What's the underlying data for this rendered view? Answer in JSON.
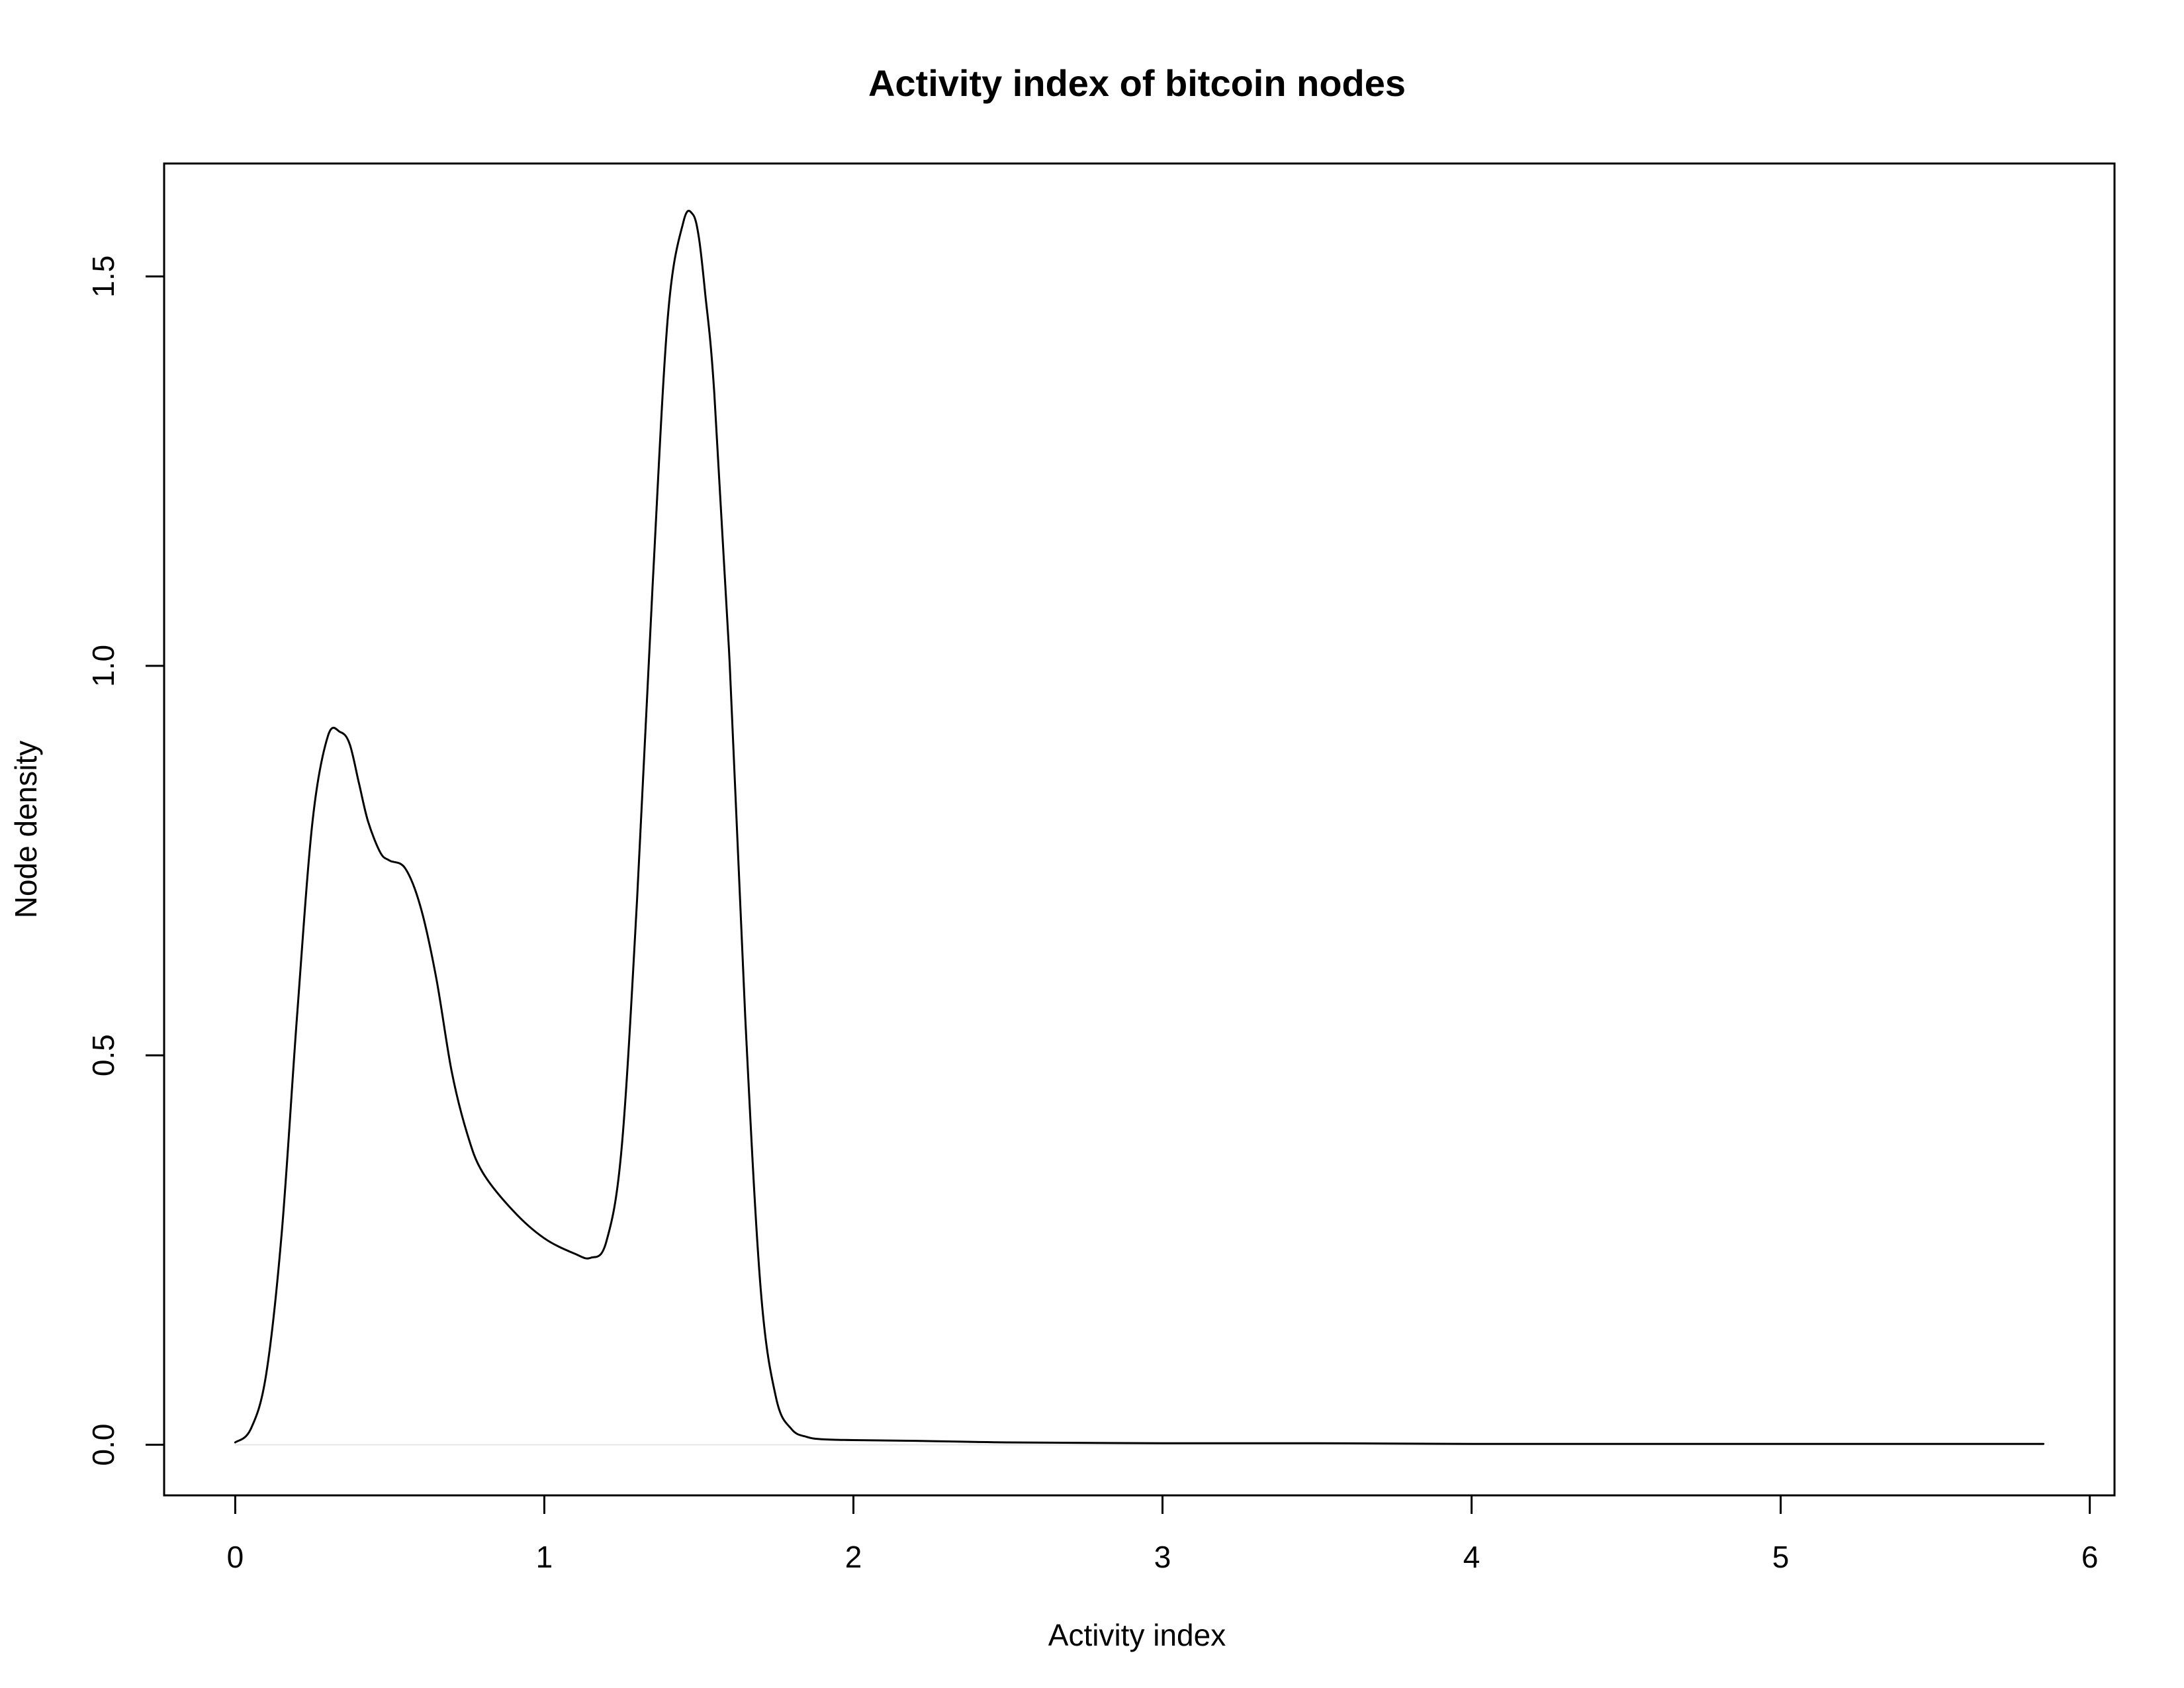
{
  "chart_data": {
    "type": "line",
    "title": "Activity index of bitcoin nodes",
    "xlabel": "Activity index",
    "ylabel": "Node density",
    "xlim": [
      -0.23,
      6.08
    ],
    "ylim": [
      -0.065,
      1.645
    ],
    "xticks": [
      0,
      1,
      2,
      3,
      4,
      5,
      6
    ],
    "xtick_labels": [
      "0",
      "1",
      "2",
      "3",
      "4",
      "5",
      "6"
    ],
    "yticks": [
      0.0,
      0.5,
      1.0,
      1.5
    ],
    "ytick_labels": [
      "0.0",
      "0.5",
      "1.0",
      "1.5"
    ],
    "grid": false,
    "baseline": 0,
    "line_color": "#000000",
    "baseline_color": "#e6e6e6",
    "series": [
      {
        "x": [
          0.0,
          0.05,
          0.1,
          0.15,
          0.2,
          0.25,
          0.3,
          0.34,
          0.37,
          0.4,
          0.43,
          0.47,
          0.5,
          0.55,
          0.6,
          0.65,
          0.7,
          0.75,
          0.8,
          0.9,
          1.0,
          1.1,
          1.15,
          1.2,
          1.25,
          1.3,
          1.35,
          1.4,
          1.45,
          1.48,
          1.5,
          1.52,
          1.55,
          1.6,
          1.65,
          1.7,
          1.75,
          1.8,
          1.85,
          1.9,
          2.0,
          2.2,
          2.5,
          3.0,
          3.5,
          4.0,
          4.5,
          5.0,
          5.5,
          5.85
        ],
        "y": [
          0.003,
          0.02,
          0.09,
          0.27,
          0.55,
          0.8,
          0.91,
          0.915,
          0.9,
          0.85,
          0.8,
          0.76,
          0.75,
          0.74,
          0.69,
          0.6,
          0.48,
          0.4,
          0.35,
          0.3,
          0.265,
          0.245,
          0.24,
          0.26,
          0.38,
          0.7,
          1.1,
          1.45,
          1.57,
          1.58,
          1.55,
          1.48,
          1.35,
          1.0,
          0.55,
          0.2,
          0.06,
          0.02,
          0.01,
          0.007,
          0.006,
          0.005,
          0.003,
          0.002,
          0.002,
          0.001,
          0.001,
          0.001,
          0.001,
          0.001
        ]
      }
    ]
  }
}
